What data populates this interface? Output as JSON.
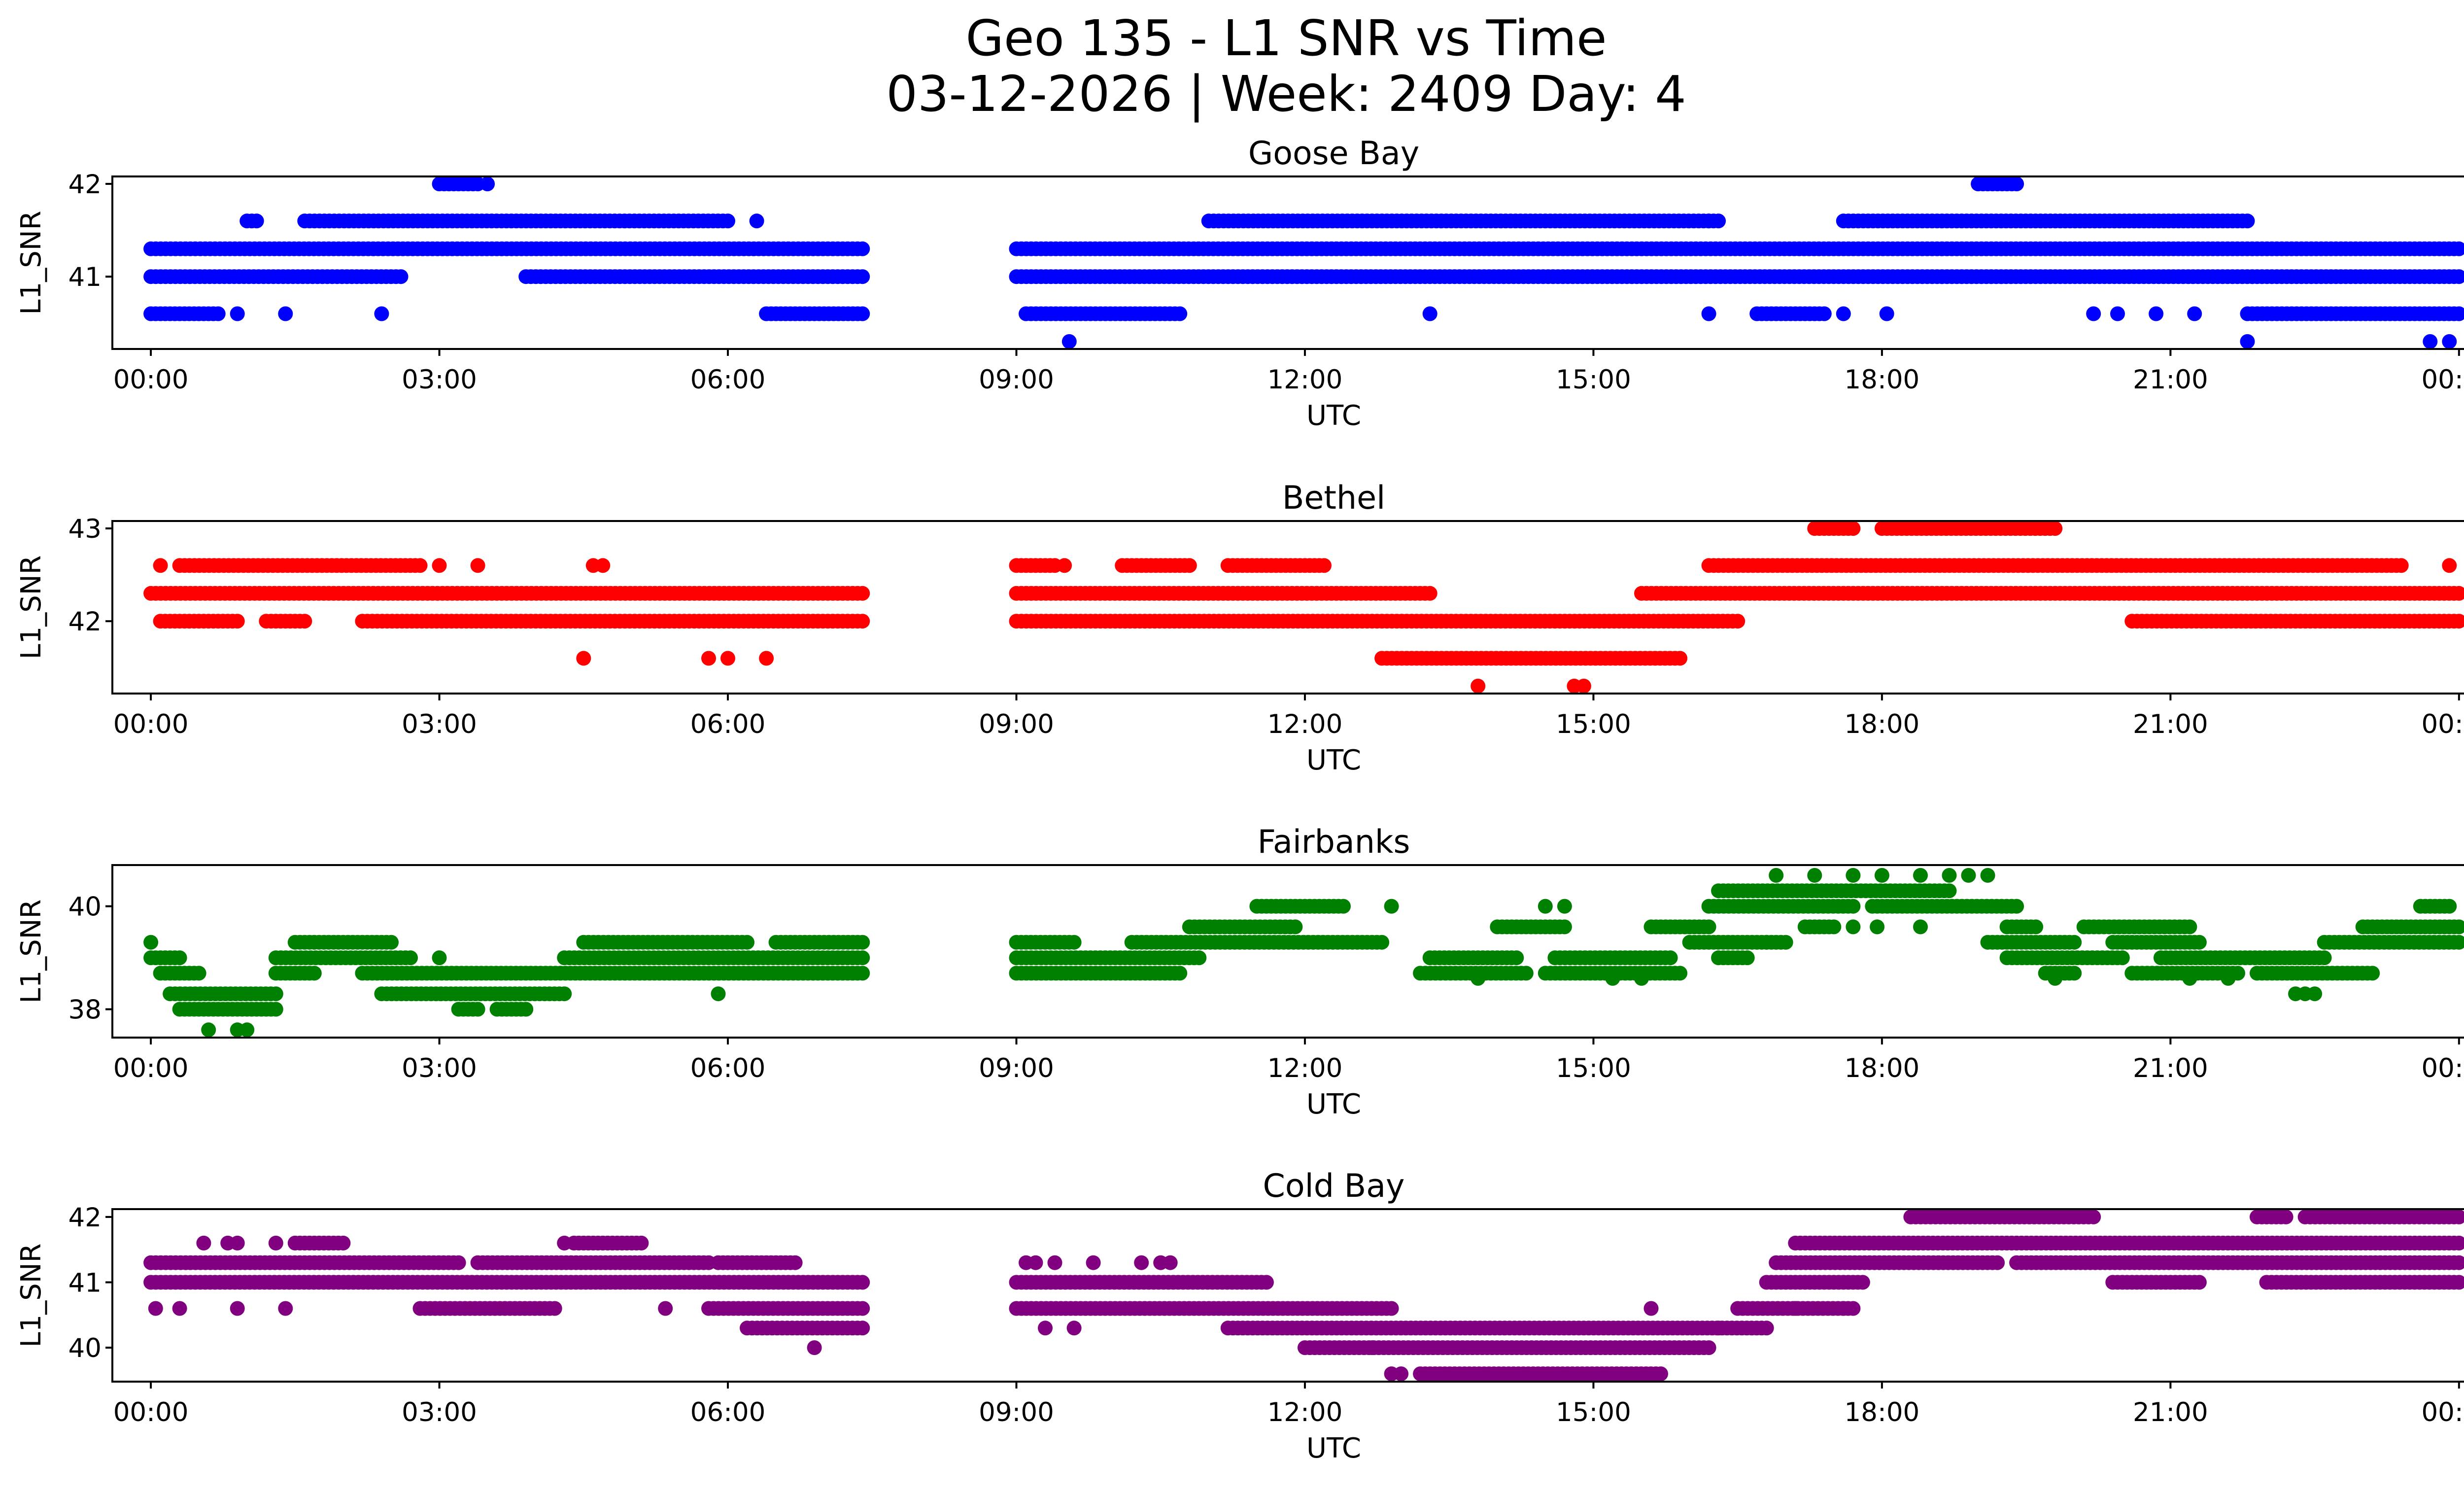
{
  "figure": {
    "title_line1": "Geo 135 - L1 SNR vs Time",
    "title_line2": "03-12-2026 | Week: 2409 Day: 4"
  },
  "chart_data": [
    {
      "type": "scatter",
      "title": "Goose Bay",
      "xlabel": "UTC",
      "ylabel": "L1_SNR",
      "color": "#0000ff",
      "xlim": [
        -0.4,
        25.0
      ],
      "ylim": [
        40.22,
        42.08
      ],
      "x_tick_values": [
        0,
        3,
        6,
        9,
        12,
        15,
        18,
        21,
        24
      ],
      "x_tick_labels": [
        "00:00",
        "03:00",
        "06:00",
        "09:00",
        "12:00",
        "15:00",
        "18:00",
        "21:00",
        "00:00"
      ],
      "y_tick_values": [
        41,
        42
      ],
      "y_tick_labels": [
        "41",
        "42"
      ],
      "segments": [
        {
          "y": 41.3,
          "ranges": [
            [
              0.0,
              7.4
            ],
            [
              9.0,
              24.0
            ]
          ]
        },
        {
          "y": 41.0,
          "ranges": [
            [
              0.0,
              2.6
            ],
            [
              3.9,
              7.4
            ],
            [
              9.0,
              24.0
            ]
          ]
        },
        {
          "y": 41.6,
          "ranges": [
            [
              1.0,
              1.1
            ],
            [
              1.6,
              6.0
            ],
            [
              11.0,
              16.3
            ],
            [
              17.6,
              21.8
            ]
          ]
        },
        {
          "y": 40.6,
          "ranges": [
            [
              0.0,
              0.7
            ],
            [
              6.4,
              7.4
            ],
            [
              9.1,
              10.7
            ],
            [
              16.7,
              17.4
            ],
            [
              21.8,
              24.0
            ]
          ]
        },
        {
          "y": 42.0,
          "ranges": [
            [
              3.0,
              3.4
            ],
            [
              19.0,
              19.4
            ]
          ]
        }
      ],
      "points": [
        {
          "x": 0.9,
          "y": 40.6
        },
        {
          "x": 1.4,
          "y": 40.6
        },
        {
          "x": 2.4,
          "y": 40.6
        },
        {
          "x": 3.5,
          "y": 42.0
        },
        {
          "x": 6.3,
          "y": 41.6
        },
        {
          "x": 9.55,
          "y": 40.3
        },
        {
          "x": 13.3,
          "y": 40.6
        },
        {
          "x": 16.2,
          "y": 41.6
        },
        {
          "x": 16.2,
          "y": 40.6
        },
        {
          "x": 17.6,
          "y": 40.6
        },
        {
          "x": 18.05,
          "y": 40.6
        },
        {
          "x": 20.2,
          "y": 40.6
        },
        {
          "x": 20.45,
          "y": 40.6
        },
        {
          "x": 20.85,
          "y": 40.6
        },
        {
          "x": 21.25,
          "y": 40.6
        },
        {
          "x": 21.8,
          "y": 40.3
        },
        {
          "x": 23.7,
          "y": 40.3
        },
        {
          "x": 23.9,
          "y": 40.3
        }
      ]
    },
    {
      "type": "scatter",
      "title": "Bethel",
      "xlabel": "UTC",
      "ylabel": "L1_SNR",
      "color": "#ff0000",
      "xlim": [
        -0.4,
        25.0
      ],
      "ylim": [
        41.22,
        43.08
      ],
      "x_tick_values": [
        0,
        3,
        6,
        9,
        12,
        15,
        18,
        21,
        24
      ],
      "x_tick_labels": [
        "00:00",
        "03:00",
        "06:00",
        "09:00",
        "12:00",
        "15:00",
        "18:00",
        "21:00",
        "00:00"
      ],
      "y_tick_values": [
        42,
        43
      ],
      "y_tick_labels": [
        "42",
        "43"
      ],
      "segments": [
        {
          "y": 42.3,
          "ranges": [
            [
              0.0,
              7.4
            ],
            [
              9.0,
              13.3
            ],
            [
              15.5,
              24.0
            ]
          ]
        },
        {
          "y": 42.0,
          "ranges": [
            [
              0.1,
              0.9
            ],
            [
              1.2,
              1.6
            ],
            [
              2.2,
              7.4
            ],
            [
              9.0,
              16.5
            ],
            [
              20.6,
              24.0
            ]
          ]
        },
        {
          "y": 42.6,
          "ranges": [
            [
              0.3,
              2.8
            ],
            [
              9.0,
              9.4
            ],
            [
              10.1,
              10.8
            ],
            [
              11.2,
              12.2
            ],
            [
              16.2,
              23.4
            ]
          ]
        },
        {
          "y": 41.6,
          "ranges": [
            [
              12.8,
              15.9
            ]
          ]
        },
        {
          "y": 43.0,
          "ranges": [
            [
              17.3,
              17.7
            ],
            [
              18.0,
              19.8
            ]
          ]
        }
      ],
      "points": [
        {
          "x": 0.1,
          "y": 42.6
        },
        {
          "x": 3.0,
          "y": 42.6
        },
        {
          "x": 3.4,
          "y": 42.6
        },
        {
          "x": 4.6,
          "y": 42.6
        },
        {
          "x": 4.7,
          "y": 42.6
        },
        {
          "x": 4.5,
          "y": 41.6
        },
        {
          "x": 5.8,
          "y": 41.6
        },
        {
          "x": 6.0,
          "y": 41.6
        },
        {
          "x": 6.4,
          "y": 41.6
        },
        {
          "x": 9.5,
          "y": 42.6
        },
        {
          "x": 13.8,
          "y": 41.3
        },
        {
          "x": 14.8,
          "y": 41.3
        },
        {
          "x": 14.9,
          "y": 41.3
        },
        {
          "x": 23.9,
          "y": 42.6
        }
      ]
    },
    {
      "type": "scatter",
      "title": "Fairbanks",
      "xlabel": "UTC",
      "ylabel": "L1_SNR",
      "color": "#008000",
      "xlim": [
        -0.4,
        25.0
      ],
      "ylim": [
        37.45,
        40.8
      ],
      "x_tick_values": [
        0,
        3,
        6,
        9,
        12,
        15,
        18,
        21,
        24
      ],
      "x_tick_labels": [
        "00:00",
        "03:00",
        "06:00",
        "09:00",
        "12:00",
        "15:00",
        "18:00",
        "21:00",
        "00:00"
      ],
      "y_tick_values": [
        38,
        40
      ],
      "y_tick_labels": [
        "38",
        "40"
      ],
      "segments": [
        {
          "y": 39.3,
          "ranges": [
            [
              1.5,
              2.5
            ],
            [
              4.5,
              6.2
            ],
            [
              6.5,
              7.4
            ],
            [
              9.0,
              9.6
            ],
            [
              10.2,
              12.8
            ],
            [
              16.0,
              17.0
            ],
            [
              19.1,
              20.0
            ],
            [
              20.4,
              21.3
            ],
            [
              22.6,
              24.0
            ]
          ]
        },
        {
          "y": 39.0,
          "ranges": [
            [
              0.0,
              0.3
            ],
            [
              1.3,
              2.7
            ],
            [
              4.3,
              7.4
            ],
            [
              9.0,
              10.9
            ],
            [
              13.3,
              14.2
            ],
            [
              14.6,
              15.8
            ],
            [
              16.3,
              16.6
            ],
            [
              19.3,
              20.5
            ],
            [
              20.9,
              22.6
            ]
          ]
        },
        {
          "y": 38.7,
          "ranges": [
            [
              0.1,
              0.5
            ],
            [
              1.3,
              1.7
            ],
            [
              2.2,
              7.4
            ],
            [
              9.0,
              10.7
            ],
            [
              13.2,
              14.3
            ],
            [
              14.5,
              15.9
            ],
            [
              19.7,
              20.0
            ],
            [
              20.6,
              21.7
            ],
            [
              21.9,
              23.1
            ]
          ]
        },
        {
          "y": 38.3,
          "ranges": [
            [
              0.2,
              1.3
            ],
            [
              2.4,
              4.3
            ]
          ]
        },
        {
          "y": 38.0,
          "ranges": [
            [
              0.3,
              1.3
            ],
            [
              3.2,
              3.4
            ],
            [
              3.6,
              3.9
            ]
          ]
        },
        {
          "y": 39.6,
          "ranges": [
            [
              10.8,
              11.9
            ],
            [
              14.0,
              14.7
            ],
            [
              15.6,
              16.2
            ],
            [
              17.2,
              17.5
            ],
            [
              19.3,
              19.6
            ],
            [
              20.1,
              21.2
            ],
            [
              23.0,
              24.0
            ]
          ]
        },
        {
          "y": 40.0,
          "ranges": [
            [
              11.5,
              12.4
            ],
            [
              16.2,
              17.7
            ],
            [
              17.9,
              19.4
            ],
            [
              23.6,
              23.9
            ]
          ]
        },
        {
          "y": 40.3,
          "ranges": [
            [
              16.3,
              18.7
            ]
          ]
        }
      ],
      "points": [
        {
          "x": 0.0,
          "y": 39.3
        },
        {
          "x": 0.6,
          "y": 37.6
        },
        {
          "x": 0.9,
          "y": 37.6
        },
        {
          "x": 1.0,
          "y": 37.6
        },
        {
          "x": 3.0,
          "y": 39.0
        },
        {
          "x": 5.9,
          "y": 38.3
        },
        {
          "x": 12.9,
          "y": 40.0
        },
        {
          "x": 13.8,
          "y": 38.6
        },
        {
          "x": 14.5,
          "y": 40.0
        },
        {
          "x": 14.7,
          "y": 40.0
        },
        {
          "x": 15.2,
          "y": 38.6
        },
        {
          "x": 15.5,
          "y": 38.6
        },
        {
          "x": 16.8,
          "y": 39.3
        },
        {
          "x": 16.9,
          "y": 40.6
        },
        {
          "x": 17.3,
          "y": 40.6
        },
        {
          "x": 17.7,
          "y": 40.6
        },
        {
          "x": 18.0,
          "y": 40.6
        },
        {
          "x": 18.4,
          "y": 40.6
        },
        {
          "x": 18.7,
          "y": 40.6
        },
        {
          "x": 18.9,
          "y": 40.6
        },
        {
          "x": 19.1,
          "y": 40.6
        },
        {
          "x": 17.7,
          "y": 39.6
        },
        {
          "x": 17.95,
          "y": 39.6
        },
        {
          "x": 18.4,
          "y": 39.6
        },
        {
          "x": 19.8,
          "y": 38.6
        },
        {
          "x": 21.2,
          "y": 38.6
        },
        {
          "x": 21.6,
          "y": 38.6
        },
        {
          "x": 22.3,
          "y": 38.3
        },
        {
          "x": 22.4,
          "y": 38.3
        },
        {
          "x": 22.5,
          "y": 38.3
        }
      ]
    },
    {
      "type": "scatter",
      "title": "Cold Bay",
      "xlabel": "UTC",
      "ylabel": "L1_SNR",
      "color": "#800080",
      "xlim": [
        -0.4,
        25.0
      ],
      "ylim": [
        39.48,
        42.12
      ],
      "x_tick_values": [
        0,
        3,
        6,
        9,
        12,
        15,
        18,
        21,
        24
      ],
      "x_tick_labels": [
        "00:00",
        "03:00",
        "06:00",
        "09:00",
        "12:00",
        "15:00",
        "18:00",
        "21:00",
        "00:00"
      ],
      "y_tick_values": [
        40,
        41,
        42
      ],
      "y_tick_labels": [
        "40",
        "41",
        "42"
      ],
      "segments": [
        {
          "y": 41.3,
          "ranges": [
            [
              0.0,
              3.2
            ],
            [
              3.4,
              5.8
            ],
            [
              5.9,
              6.7
            ],
            [
              16.9,
              19.2
            ],
            [
              19.4,
              24.0
            ]
          ]
        },
        {
          "y": 41.0,
          "ranges": [
            [
              0.0,
              7.4
            ],
            [
              9.0,
              11.6
            ],
            [
              16.8,
              17.8
            ],
            [
              20.4,
              21.3
            ],
            [
              22.0,
              24.0
            ]
          ]
        },
        {
          "y": 40.6,
          "ranges": [
            [
              2.8,
              4.2
            ],
            [
              5.8,
              7.4
            ],
            [
              9.0,
              12.9
            ],
            [
              16.5,
              17.7
            ]
          ]
        },
        {
          "y": 40.3,
          "ranges": [
            [
              6.2,
              7.4
            ],
            [
              11.2,
              16.8
            ]
          ]
        },
        {
          "y": 40.0,
          "ranges": [
            [
              12.0,
              16.2
            ]
          ]
        },
        {
          "y": 41.6,
          "ranges": [
            [
              1.5,
              2.0
            ],
            [
              4.4,
              5.1
            ],
            [
              17.1,
              24.0
            ]
          ]
        },
        {
          "y": 42.0,
          "ranges": [
            [
              18.3,
              20.2
            ],
            [
              21.9,
              22.2
            ],
            [
              22.4,
              24.0
            ]
          ]
        },
        {
          "y": 39.6,
          "ranges": [
            [
              13.2,
              15.7
            ]
          ]
        }
      ],
      "points": [
        {
          "x": 0.05,
          "y": 40.6
        },
        {
          "x": 0.3,
          "y": 40.6
        },
        {
          "x": 0.9,
          "y": 40.6
        },
        {
          "x": 1.4,
          "y": 40.6
        },
        {
          "x": 0.55,
          "y": 41.6
        },
        {
          "x": 0.8,
          "y": 41.6
        },
        {
          "x": 0.9,
          "y": 41.6
        },
        {
          "x": 1.3,
          "y": 41.6
        },
        {
          "x": 4.3,
          "y": 41.6
        },
        {
          "x": 5.35,
          "y": 40.6
        },
        {
          "x": 6.9,
          "y": 40.0
        },
        {
          "x": 9.1,
          "y": 41.3
        },
        {
          "x": 9.2,
          "y": 41.3
        },
        {
          "x": 9.4,
          "y": 41.3
        },
        {
          "x": 9.8,
          "y": 41.3
        },
        {
          "x": 10.3,
          "y": 41.3
        },
        {
          "x": 10.5,
          "y": 41.3
        },
        {
          "x": 10.6,
          "y": 41.3
        },
        {
          "x": 9.3,
          "y": 40.3
        },
        {
          "x": 9.6,
          "y": 40.3
        },
        {
          "x": 12.9,
          "y": 39.6
        },
        {
          "x": 13.0,
          "y": 39.6
        },
        {
          "x": 12.7,
          "y": 40.0
        },
        {
          "x": 15.6,
          "y": 40.6
        },
        {
          "x": 17.1,
          "y": 40.6
        },
        {
          "x": 17.6,
          "y": 40.6
        },
        {
          "x": 16.3,
          "y": 40.3
        }
      ]
    }
  ]
}
